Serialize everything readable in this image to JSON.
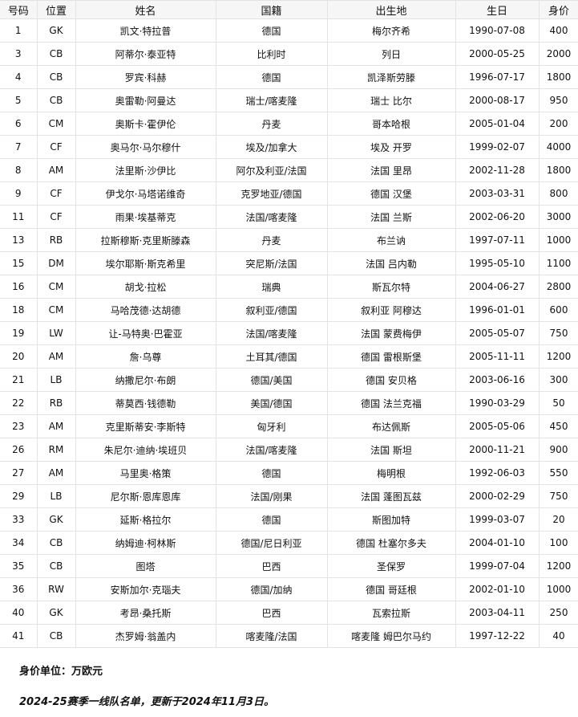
{
  "table": {
    "headers": [
      "号码",
      "位置",
      "姓名",
      "国籍",
      "出生地",
      "生日",
      "身价"
    ],
    "rows": [
      [
        "1",
        "GK",
        "凯文·特拉普",
        "德国",
        "梅尔齐希",
        "1990-07-08",
        "400"
      ],
      [
        "3",
        "CB",
        "阿蒂尔·泰亚特",
        "比利时",
        "列日",
        "2000-05-25",
        "2000"
      ],
      [
        "4",
        "CB",
        "罗宾·科赫",
        "德国",
        "凯泽斯劳滕",
        "1996-07-17",
        "1800"
      ],
      [
        "5",
        "CB",
        "奥雷勒·阿曼达",
        "瑞士/喀麦隆",
        "瑞士 比尔",
        "2000-08-17",
        "950"
      ],
      [
        "6",
        "CM",
        "奥斯卡·霍伊伦",
        "丹麦",
        "哥本哈根",
        "2005-01-04",
        "200"
      ],
      [
        "7",
        "CF",
        "奥马尔·马尔穆什",
        "埃及/加拿大",
        "埃及 开罗",
        "1999-02-07",
        "4000"
      ],
      [
        "8",
        "AM",
        "法里斯·沙伊比",
        "阿尔及利亚/法国",
        "法国 里昂",
        "2002-11-28",
        "1800"
      ],
      [
        "9",
        "CF",
        "伊戈尔·马塔诺维奇",
        "克罗地亚/德国",
        "德国 汉堡",
        "2003-03-31",
        "800"
      ],
      [
        "11",
        "CF",
        "雨果·埃基蒂克",
        "法国/喀麦隆",
        "法国 兰斯",
        "2002-06-20",
        "3000"
      ],
      [
        "13",
        "RB",
        "拉斯穆斯·克里斯滕森",
        "丹麦",
        "布兰讷",
        "1997-07-11",
        "1000"
      ],
      [
        "15",
        "DM",
        "埃尔耶斯·斯克希里",
        "突尼斯/法国",
        "法国 吕内勒",
        "1995-05-10",
        "1100"
      ],
      [
        "16",
        "CM",
        "胡戈·拉松",
        "瑞典",
        "斯瓦尔特",
        "2004-06-27",
        "2800"
      ],
      [
        "18",
        "CM",
        "马哈茂德·达胡德",
        "叙利亚/德国",
        "叙利亚 阿穆达",
        "1996-01-01",
        "600"
      ],
      [
        "19",
        "LW",
        "让-马特奥·巴霍亚",
        "法国/喀麦隆",
        "法国 蒙费梅伊",
        "2005-05-07",
        "750"
      ],
      [
        "20",
        "AM",
        "詹·乌尊",
        "土耳其/德国",
        "德国 雷根斯堡",
        "2005-11-11",
        "1200"
      ],
      [
        "21",
        "LB",
        "纳撒尼尔·布朗",
        "德国/美国",
        "德国 安贝格",
        "2003-06-16",
        "300"
      ],
      [
        "22",
        "RB",
        "蒂莫西·钱德勒",
        "美国/德国",
        "德国 法兰克福",
        "1990-03-29",
        "50"
      ],
      [
        "23",
        "AM",
        "克里斯蒂安·李斯特",
        "匈牙利",
        "布达佩斯",
        "2005-05-06",
        "450"
      ],
      [
        "26",
        "RM",
        "朱尼尔·迪纳·埃班贝",
        "法国/喀麦隆",
        "法国 斯坦",
        "2000-11-21",
        "900"
      ],
      [
        "27",
        "AM",
        "马里奥·格策",
        "德国",
        "梅明根",
        "1992-06-03",
        "550"
      ],
      [
        "29",
        "LB",
        "尼尔斯·恩库恩库",
        "法国/刚果",
        "法国 蓬图瓦兹",
        "2000-02-29",
        "750"
      ],
      [
        "33",
        "GK",
        "延斯·格拉尔",
        "德国",
        "斯图加特",
        "1999-03-07",
        "20"
      ],
      [
        "34",
        "CB",
        "纳姆迪·柯林斯",
        "德国/尼日利亚",
        "德国 杜塞尔多夫",
        "2004-01-10",
        "100"
      ],
      [
        "35",
        "CB",
        "图塔",
        "巴西",
        "圣保罗",
        "1999-07-04",
        "1200"
      ],
      [
        "36",
        "RW",
        "安斯加尔·克瑙夫",
        "德国/加纳",
        "德国 哥廷根",
        "2002-01-10",
        "1000"
      ],
      [
        "40",
        "GK",
        "考昂·桑托斯",
        "巴西",
        "瓦索拉斯",
        "2003-04-11",
        "250"
      ],
      [
        "41",
        "CB",
        "杰罗姆·翁盖内",
        "喀麦隆/法国",
        "喀麦隆 姆巴尔马约",
        "1997-12-22",
        "40"
      ]
    ]
  },
  "notes": {
    "unit": "身价单位：万欧元",
    "update": "2024-25赛季一线队名单，更新于2024年11月3日。"
  }
}
